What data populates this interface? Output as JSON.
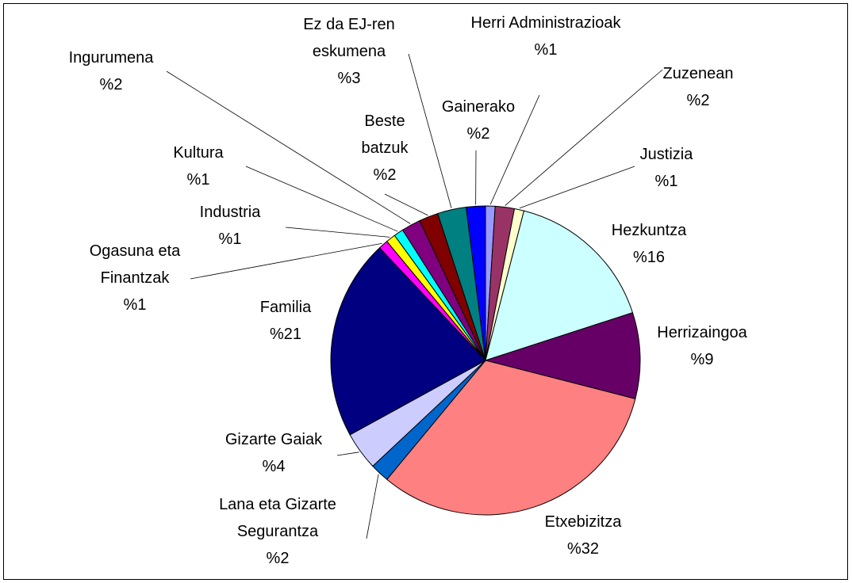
{
  "chart_data": {
    "type": "pie",
    "categories": [
      "Herri Administrazioak",
      "Zuzenean",
      "Justizia",
      "Hezkuntza",
      "Herrizaingoa",
      "Etxebizitza",
      "Lana eta Gizarte Segurantza",
      "Gizarte Gaiak",
      "Familia",
      "Ogasuna eta Finantzak",
      "Industria",
      "Kultura",
      "Ingurumena",
      "Beste batzuk",
      "Ez da EJ-ren eskumena",
      "Gainerako"
    ],
    "values": [
      1,
      2,
      1,
      16,
      9,
      32,
      2,
      4,
      21,
      1,
      1,
      1,
      2,
      2,
      3,
      2
    ],
    "value_labels": [
      "%1",
      "%2",
      "%1",
      "%16",
      "%9",
      "%32",
      "%2",
      "%4",
      "%21",
      "%1",
      "%1",
      "%1",
      "%2",
      "%2",
      "%3",
      "%2"
    ],
    "colors": [
      "#9999ff",
      "#993366",
      "#ffffcc",
      "#ccffff",
      "#660066",
      "#ff8080",
      "#0066cc",
      "#ccccff",
      "#000080",
      "#ff00ff",
      "#ffff00",
      "#00ffff",
      "#800080",
      "#800000",
      "#008080",
      "#0000ff"
    ]
  }
}
